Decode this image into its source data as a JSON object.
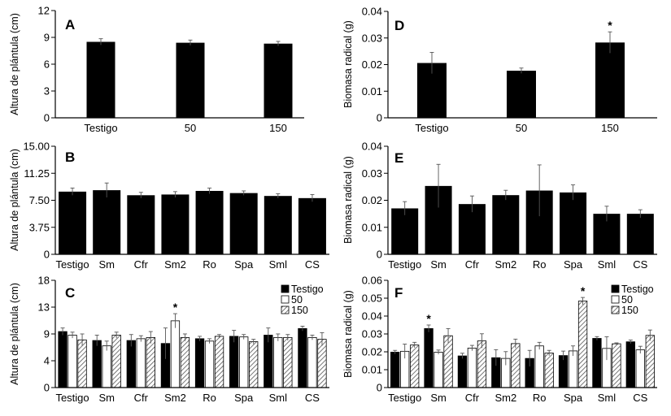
{
  "chart_data": [
    {
      "panel": "A",
      "type": "bar",
      "ylabel": "Altura de plántula (cm)",
      "categories": [
        "Testigo",
        "50",
        "150"
      ],
      "ylim": [
        0,
        12
      ],
      "yticks": [
        "0",
        "3",
        "6",
        "9",
        "12"
      ],
      "series": [
        {
          "values": [
            8.5,
            8.4,
            8.3
          ],
          "errors": [
            0.35,
            0.3,
            0.25
          ]
        }
      ],
      "marks": []
    },
    {
      "panel": "D",
      "type": "bar",
      "ylabel": "Biomasa radical (g)",
      "categories": [
        "Testigo",
        "50",
        "150"
      ],
      "ylim": [
        0,
        0.04
      ],
      "yticks": [
        "0",
        "0.01",
        "0.02",
        "0.03",
        "0.04"
      ],
      "series": [
        {
          "values": [
            0.0206,
            0.0177,
            0.0283
          ],
          "errors": [
            0.004,
            0.001,
            0.004
          ]
        }
      ],
      "marks": [
        {
          "category": 2,
          "series": 0,
          "text": "*"
        }
      ]
    },
    {
      "panel": "B",
      "type": "bar",
      "ylabel": "Altura de plántula (cm)",
      "categories": [
        "Testigo",
        "Sm",
        "Cfr",
        "Sm2",
        "Ro",
        "Spa",
        "Sml",
        "CS"
      ],
      "ylim": [
        0,
        15
      ],
      "yticks": [
        "0",
        "3.75",
        "7.50",
        "11.25",
        "15.00"
      ],
      "series": [
        {
          "values": [
            8.7,
            8.9,
            8.2,
            8.3,
            8.8,
            8.5,
            8.1,
            7.8
          ],
          "errors": [
            0.5,
            1.0,
            0.4,
            0.4,
            0.4,
            0.3,
            0.3,
            0.5
          ]
        }
      ],
      "marks": []
    },
    {
      "panel": "E",
      "type": "bar",
      "ylabel": "Biomasa radical (g)",
      "categories": [
        "Testigo",
        "Sm",
        "Cfr",
        "Sm2",
        "Ro",
        "Spa",
        "Sml",
        "CS"
      ],
      "ylim": [
        0,
        0.04
      ],
      "yticks": [
        "0",
        "0.01",
        "0.02",
        "0.03",
        "0.04"
      ],
      "series": [
        {
          "values": [
            0.017,
            0.0253,
            0.0186,
            0.0219,
            0.0236,
            0.0229,
            0.015,
            0.015
          ],
          "errors": [
            0.0025,
            0.008,
            0.003,
            0.0018,
            0.0095,
            0.0028,
            0.0028,
            0.0015
          ]
        }
      ],
      "marks": []
    },
    {
      "panel": "C",
      "type": "bar",
      "ylabel": "Altura de plántula (cm)",
      "categories": [
        "Testigo",
        "Sm",
        "Cfr",
        "Sm2",
        "Ro",
        "Spa",
        "Sml",
        "CS"
      ],
      "ylim": [
        0,
        18
      ],
      "yticks": [
        "0",
        "4",
        "9",
        "13",
        "18"
      ],
      "series": [
        {
          "name": "Testigo",
          "values": [
            9.4,
            7.9,
            7.9,
            7.4,
            8.2,
            8.6,
            8.8,
            9.9
          ],
          "errors": [
            0.6,
            0.9,
            1.0,
            2.6,
            0.4,
            1.0,
            1.2,
            0.4
          ]
        },
        {
          "name": "50",
          "values": [
            8.8,
            7.0,
            8.2,
            11.2,
            7.8,
            8.5,
            8.4,
            8.4
          ],
          "errors": [
            0.5,
            0.8,
            0.5,
            1.2,
            0.4,
            0.4,
            0.6,
            0.4
          ]
        },
        {
          "name": "150",
          "values": [
            8.0,
            8.8,
            8.4,
            8.4,
            8.6,
            7.7,
            8.4,
            8.1
          ],
          "errors": [
            1.0,
            0.5,
            1.0,
            0.6,
            0.3,
            0.4,
            0.5,
            1.1
          ]
        }
      ],
      "legend": "top-right",
      "marks": [
        {
          "category": 3,
          "series": 1,
          "text": "*"
        }
      ]
    },
    {
      "panel": "F",
      "type": "bar",
      "ylabel": "Biomasa radical (g)",
      "categories": [
        "Testigo",
        "Sm",
        "Cfr",
        "Sm2",
        "Ro",
        "Spa",
        "Sml",
        "CS"
      ],
      "ylim": [
        0,
        0.06
      ],
      "yticks": [
        "0",
        "0.01",
        "0.02",
        "0.03",
        "0.04",
        "0.05",
        "0.06"
      ],
      "series": [
        {
          "name": "Testigo",
          "values": [
            0.0198,
            0.033,
            0.0177,
            0.0167,
            0.0163,
            0.0179,
            0.0275,
            0.0256
          ],
          "errors": [
            0.001,
            0.002,
            0.0015,
            0.0045,
            0.0045,
            0.0025,
            0.001,
            0.001
          ]
        },
        {
          "name": "50",
          "values": [
            0.0203,
            0.0198,
            0.0221,
            0.0163,
            0.0233,
            0.0205,
            0.0219,
            0.0211
          ],
          "errors": [
            0.004,
            0.0012,
            0.0015,
            0.0038,
            0.002,
            0.0028,
            0.0065,
            0.002
          ]
        },
        {
          "name": "150",
          "values": [
            0.0238,
            0.029,
            0.0261,
            0.0246,
            0.0193,
            0.0484,
            0.0245,
            0.0292
          ],
          "errors": [
            0.0015,
            0.004,
            0.004,
            0.0025,
            0.0015,
            0.002,
            0.0005,
            0.003
          ]
        }
      ],
      "legend": "top-right",
      "marks": [
        {
          "category": 1,
          "series": 0,
          "text": "*"
        },
        {
          "category": 5,
          "series": 2,
          "text": "*"
        }
      ]
    }
  ]
}
